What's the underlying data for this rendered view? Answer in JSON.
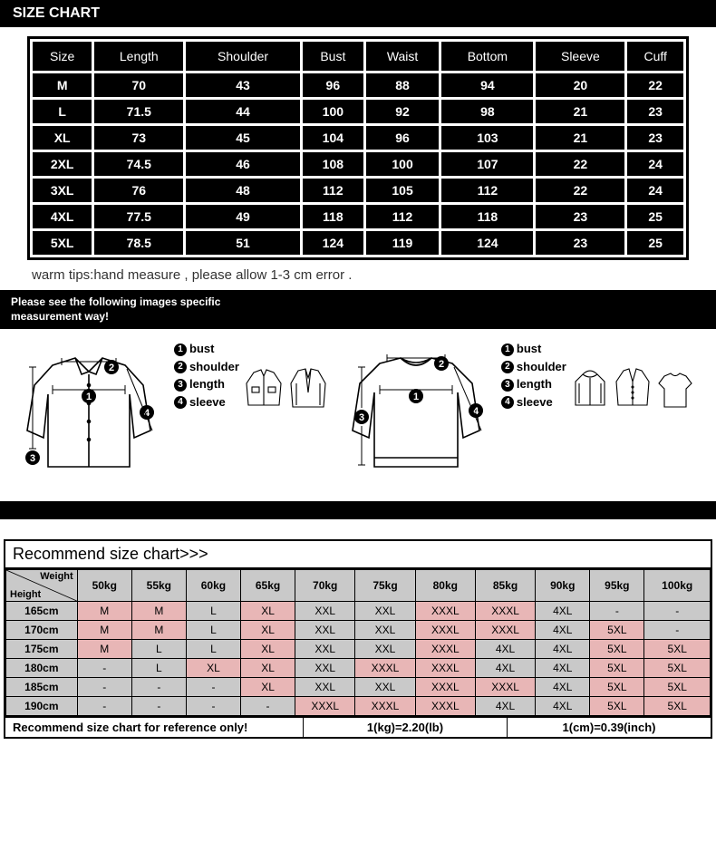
{
  "header": {
    "title": "SIZE CHART"
  },
  "size_table": {
    "columns": [
      "Size",
      "Length",
      "Shoulder",
      "Bust",
      "Waist",
      "Bottom",
      "Sleeve",
      "Cuff"
    ],
    "rows": [
      [
        "M",
        "70",
        "43",
        "96",
        "88",
        "94",
        "20",
        "22"
      ],
      [
        "L",
        "71.5",
        "44",
        "100",
        "92",
        "98",
        "21",
        "23"
      ],
      [
        "XL",
        "73",
        "45",
        "104",
        "96",
        "103",
        "21",
        "23"
      ],
      [
        "2XL",
        "74.5",
        "46",
        "108",
        "100",
        "107",
        "22",
        "24"
      ],
      [
        "3XL",
        "76",
        "48",
        "112",
        "105",
        "112",
        "22",
        "24"
      ],
      [
        "4XL",
        "77.5",
        "49",
        "118",
        "112",
        "118",
        "23",
        "25"
      ],
      [
        "5XL",
        "78.5",
        "51",
        "124",
        "119",
        "124",
        "23",
        "25"
      ]
    ],
    "cell_bg": "#000000",
    "cell_fg": "#ffffff",
    "border": "#000000"
  },
  "tips": "warm tips:hand measure , please allow 1-3 cm error .",
  "meas_head_l1": "Please see the following images specific",
  "meas_head_l2": "measurement way!",
  "legend": {
    "items": [
      "bust",
      "shoulder",
      "length",
      "sleeve"
    ]
  },
  "rec": {
    "title": "Recommend size chart>>>",
    "height_label": "Height",
    "weight_label": "Weight",
    "weights": [
      "50kg",
      "55kg",
      "60kg",
      "65kg",
      "70kg",
      "75kg",
      "80kg",
      "85kg",
      "90kg",
      "95kg",
      "100kg"
    ],
    "rows": [
      {
        "h": "165cm",
        "cells": [
          [
            "M",
            1
          ],
          [
            "M",
            1
          ],
          [
            "L",
            0
          ],
          [
            "XL",
            1
          ],
          [
            "XXL",
            0
          ],
          [
            "XXL",
            0
          ],
          [
            "XXXL",
            1
          ],
          [
            "XXXL",
            1
          ],
          [
            "4XL",
            0
          ],
          [
            "-",
            0
          ],
          [
            "-",
            0
          ]
        ]
      },
      {
        "h": "170cm",
        "cells": [
          [
            "M",
            1
          ],
          [
            "M",
            1
          ],
          [
            "L",
            0
          ],
          [
            "XL",
            1
          ],
          [
            "XXL",
            0
          ],
          [
            "XXL",
            0
          ],
          [
            "XXXL",
            1
          ],
          [
            "XXXL",
            1
          ],
          [
            "4XL",
            0
          ],
          [
            "5XL",
            1
          ],
          [
            "-",
            0
          ]
        ]
      },
      {
        "h": "175cm",
        "cells": [
          [
            "M",
            1
          ],
          [
            "L",
            0
          ],
          [
            "L",
            0
          ],
          [
            "XL",
            1
          ],
          [
            "XXL",
            0
          ],
          [
            "XXL",
            0
          ],
          [
            "XXXL",
            1
          ],
          [
            "4XL",
            0
          ],
          [
            "4XL",
            0
          ],
          [
            "5XL",
            1
          ],
          [
            "5XL",
            1
          ]
        ]
      },
      {
        "h": "180cm",
        "cells": [
          [
            "-",
            0
          ],
          [
            "L",
            0
          ],
          [
            "XL",
            1
          ],
          [
            "XL",
            1
          ],
          [
            "XXL",
            0
          ],
          [
            "XXXL",
            1
          ],
          [
            "XXXL",
            1
          ],
          [
            "4XL",
            0
          ],
          [
            "4XL",
            0
          ],
          [
            "5XL",
            1
          ],
          [
            "5XL",
            1
          ]
        ]
      },
      {
        "h": "185cm",
        "cells": [
          [
            "-",
            0
          ],
          [
            "-",
            0
          ],
          [
            "-",
            0
          ],
          [
            "XL",
            1
          ],
          [
            "XXL",
            0
          ],
          [
            "XXL",
            0
          ],
          [
            "XXXL",
            1
          ],
          [
            "XXXL",
            1
          ],
          [
            "4XL",
            0
          ],
          [
            "5XL",
            1
          ],
          [
            "5XL",
            1
          ]
        ]
      },
      {
        "h": "190cm",
        "cells": [
          [
            "-",
            0
          ],
          [
            "-",
            0
          ],
          [
            "-",
            0
          ],
          [
            "-",
            0
          ],
          [
            "XXXL",
            1
          ],
          [
            "XXXL",
            1
          ],
          [
            "XXXL",
            1
          ],
          [
            "4XL",
            0
          ],
          [
            "4XL",
            0
          ],
          [
            "5XL",
            1
          ],
          [
            "5XL",
            1
          ]
        ]
      }
    ],
    "footer": {
      "f1": "Recommend size chart for reference only!",
      "f2": "1(kg)=2.20(lb)",
      "f3": "1(cm)=0.39(inch)"
    },
    "colors": {
      "normal": "#c9c9c9",
      "pink": "#e8b6b6",
      "border": "#000000"
    }
  }
}
